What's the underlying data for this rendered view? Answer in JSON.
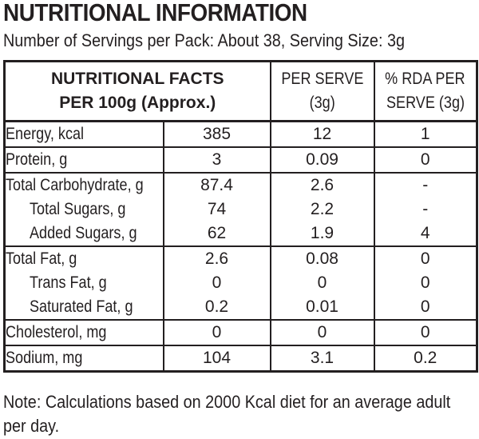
{
  "title": "NUTRITIONAL INFORMATION",
  "subtitle": "Number of Servings per Pack: About 38, Serving Size: 3g",
  "table": {
    "header": {
      "col1_line1": "NUTRITIONAL FACTS",
      "col1_line2": "PER 100g (Approx.)",
      "col2_line1": "PER SERVE",
      "col2_line2": "(3g)",
      "col3_line1": "% RDA PER",
      "col3_line2": "SERVE (3g)"
    },
    "rows": [
      {
        "label": "Energy, kcal",
        "per100": "385",
        "perServe": "12",
        "rda": "1"
      },
      {
        "label": "Protein, g",
        "per100": "3",
        "perServe": "0.09",
        "rda": "0"
      },
      {
        "label": "Total Carbohydrate, g",
        "per100": "87.4",
        "perServe": "2.6",
        "rda": "-"
      },
      {
        "label": "Total Sugars, g",
        "per100": "74",
        "perServe": "2.2",
        "rda": "-"
      },
      {
        "label": "Added Sugars, g",
        "per100": "62",
        "perServe": "1.9",
        "rda": "4"
      },
      {
        "label": "Total Fat, g",
        "per100": "2.6",
        "perServe": "0.08",
        "rda": "0"
      },
      {
        "label": "Trans Fat, g",
        "per100": "0",
        "perServe": "0",
        "rda": "0"
      },
      {
        "label": "Saturated Fat, g",
        "per100": "0.2",
        "perServe": "0.01",
        "rda": "0"
      },
      {
        "label": "Cholesterol, mg",
        "per100": "0",
        "perServe": "0",
        "rda": "0"
      },
      {
        "label": "Sodium, mg",
        "per100": "104",
        "perServe": "3.1",
        "rda": "0.2"
      }
    ]
  },
  "note": "Note: Calculations based on 2000 Kcal diet for an average adult per day."
}
